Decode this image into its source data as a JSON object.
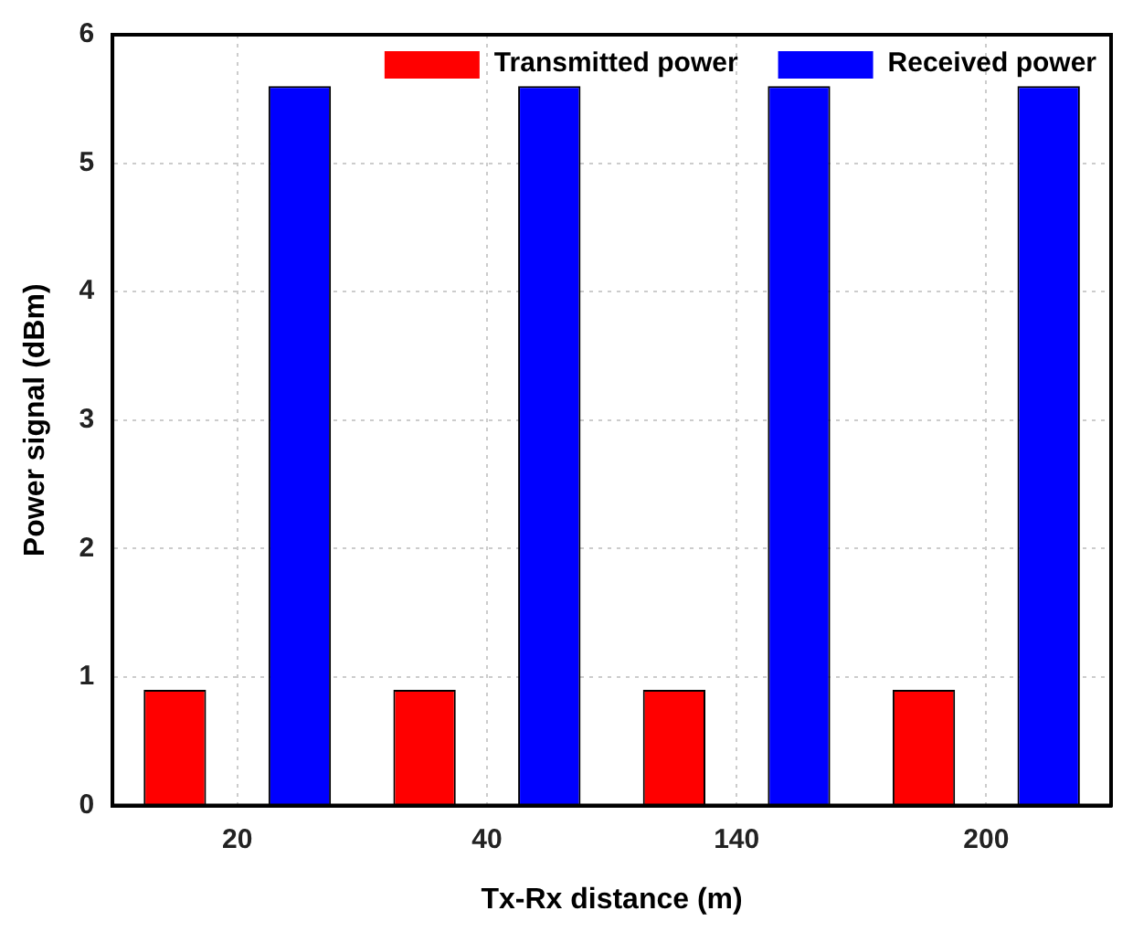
{
  "chart_data": {
    "type": "bar",
    "xlabel": "Tx-Rx distance (m)",
    "ylabel": "Power signal (dBm)",
    "categories": [
      "20",
      "40",
      "140",
      "200"
    ],
    "series": [
      {
        "name": "Transmitted power",
        "color": "#ff0000",
        "values": [
          0.9,
          0.9,
          0.9,
          0.9
        ]
      },
      {
        "name": "Received power",
        "color": "#0000ff",
        "values": [
          5.6,
          5.6,
          5.6,
          5.6
        ]
      }
    ],
    "ylim": [
      0,
      6
    ],
    "yticks": [
      0,
      1,
      2,
      3,
      4,
      5,
      6
    ],
    "grid": true,
    "legend": "top right"
  }
}
